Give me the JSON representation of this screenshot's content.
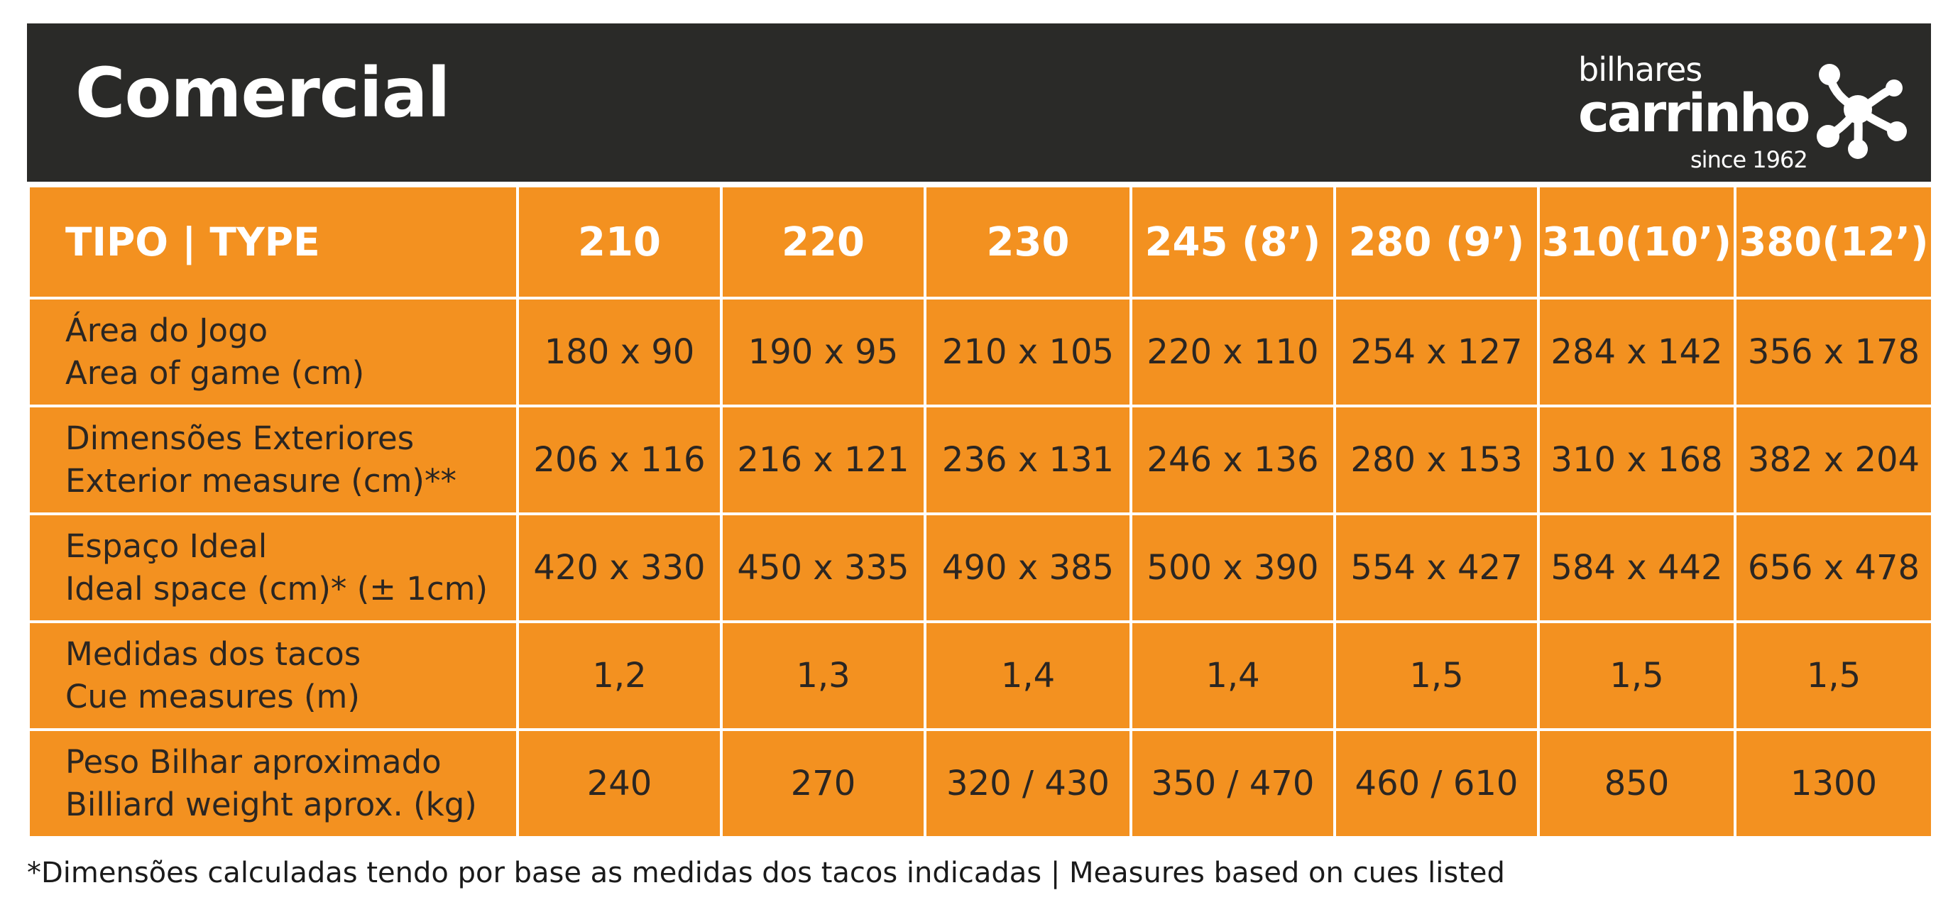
{
  "header": {
    "title": "Comercial",
    "background_color": "#2a2a28"
  },
  "logo": {
    "top_text": "bilhares",
    "main_text": "carrinho",
    "bottom_text": "since 1962",
    "icon": "molecule-dots-icon"
  },
  "table": {
    "accent_color": "#f39120",
    "header_label": "TIPO | TYPE",
    "columns": [
      "210",
      "220",
      "230",
      "245 (8’)",
      "280 (9’)",
      "310(10’)",
      "380(12’)"
    ],
    "rows": [
      {
        "label_pt": "Área do Jogo",
        "label_en": "Area of game (cm)",
        "values": [
          "180 x 90",
          "190 x 95",
          "210 x 105",
          "220 x 110",
          "254 x 127",
          "284 x 142",
          "356 x 178"
        ]
      },
      {
        "label_pt": "Dimensões Exteriores",
        "label_en": "Exterior measure (cm)**",
        "values": [
          "206 x 116",
          "216 x 121",
          "236 x 131",
          "246 x 136",
          "280 x 153",
          "310 x 168",
          "382 x 204"
        ]
      },
      {
        "label_pt": "Espaço Ideal",
        "label_en": "Ideal space (cm)* (± 1cm)",
        "values": [
          "420 x 330",
          "450 x 335",
          "490 x 385",
          "500 x 390",
          "554 x 427",
          "584 x 442",
          "656 x 478"
        ]
      },
      {
        "label_pt": "Medidas dos tacos",
        "label_en": "Cue measures (m)",
        "values": [
          "1,2",
          "1,3",
          "1,4",
          "1,4",
          "1,5",
          "1,5",
          "1,5"
        ]
      },
      {
        "label_pt": "Peso Bilhar aproximado",
        "label_en": "Billiard weight aprox. (kg)",
        "values": [
          "240",
          "270",
          "320 / 430",
          "350 / 470",
          "460 / 610",
          "850",
          "1300"
        ]
      }
    ]
  },
  "footnote": "*Dimensões calculadas tendo por base as medidas dos tacos indicadas | Measures based on cues listed"
}
